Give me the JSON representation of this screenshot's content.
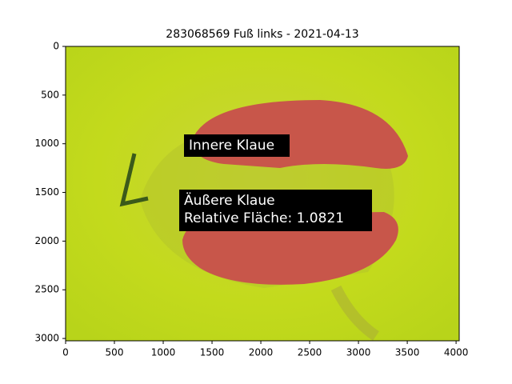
{
  "chart_data": {
    "type": "image",
    "title": "283068569 Fuß links - 2021-04-13",
    "xlim": [
      0,
      4032
    ],
    "ylim": [
      3024,
      0
    ],
    "xticks": [
      0,
      500,
      1000,
      1500,
      2000,
      2500,
      3000,
      3500,
      4000
    ],
    "yticks": [
      0,
      500,
      1000,
      1500,
      2000,
      2500,
      3000
    ],
    "annotations": [
      "Innere Klaue",
      "Äußere Klaue",
      "Relative Fläche: 1.0821"
    ]
  }
}
